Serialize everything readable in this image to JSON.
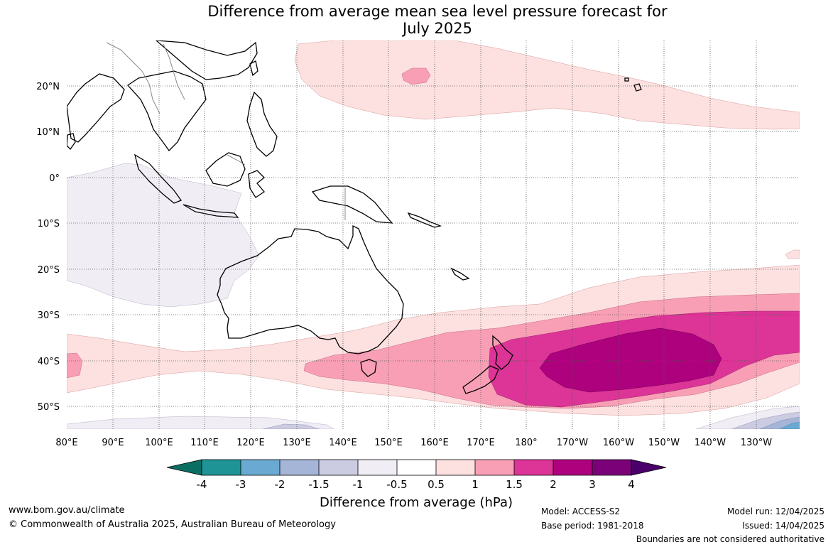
{
  "title_line1": "Difference from average mean sea level pressure forecast for",
  "title_line2": "July 2025",
  "map": {
    "type": "map",
    "projection": "equirectangular",
    "lon_range": [
      80,
      239
    ],
    "lat_range": [
      -55,
      30
    ],
    "gridlines": true,
    "lon_ticks": [
      "80°E",
      "90°E",
      "100°E",
      "110°E",
      "120°E",
      "130°E",
      "140°E",
      "150°E",
      "160°E",
      "170°E",
      "180°",
      "170°W",
      "160°W",
      "150°W",
      "140°W",
      "130°W"
    ],
    "lat_ticks": [
      "20°N",
      "10°N",
      "0°",
      "10°S",
      "20°S",
      "30°S",
      "40°S",
      "50°S"
    ]
  },
  "colorbar": {
    "title": "Difference from average (hPa)",
    "tick_labels": [
      "-4",
      "-3",
      "-2",
      "-1.5",
      "-1",
      "-0.5",
      "0.5",
      "1",
      "1.5",
      "2",
      "3",
      "4"
    ],
    "colors": [
      "#0b6e62",
      "#1f9497",
      "#6aa9d2",
      "#a5b5d7",
      "#cbcbe2",
      "#f1edf5",
      "#ffffff",
      "#fde0e0",
      "#f89fb6",
      "#dd3497",
      "#ae017e",
      "#7a0177",
      "#49006a"
    ]
  },
  "footer": {
    "website": "www.bom.gov.au/climate",
    "copyright": "© Commonwealth of Australia 2025, Australian Bureau of Meteorology",
    "model": "Model: ACCESS-S2",
    "base_period": "Base period: 1981-2018",
    "model_run": "Model run: 12/04/2025",
    "issued": "Issued: 14/04/2025",
    "disclaimer": "Boundaries are not considered authoritative"
  }
}
